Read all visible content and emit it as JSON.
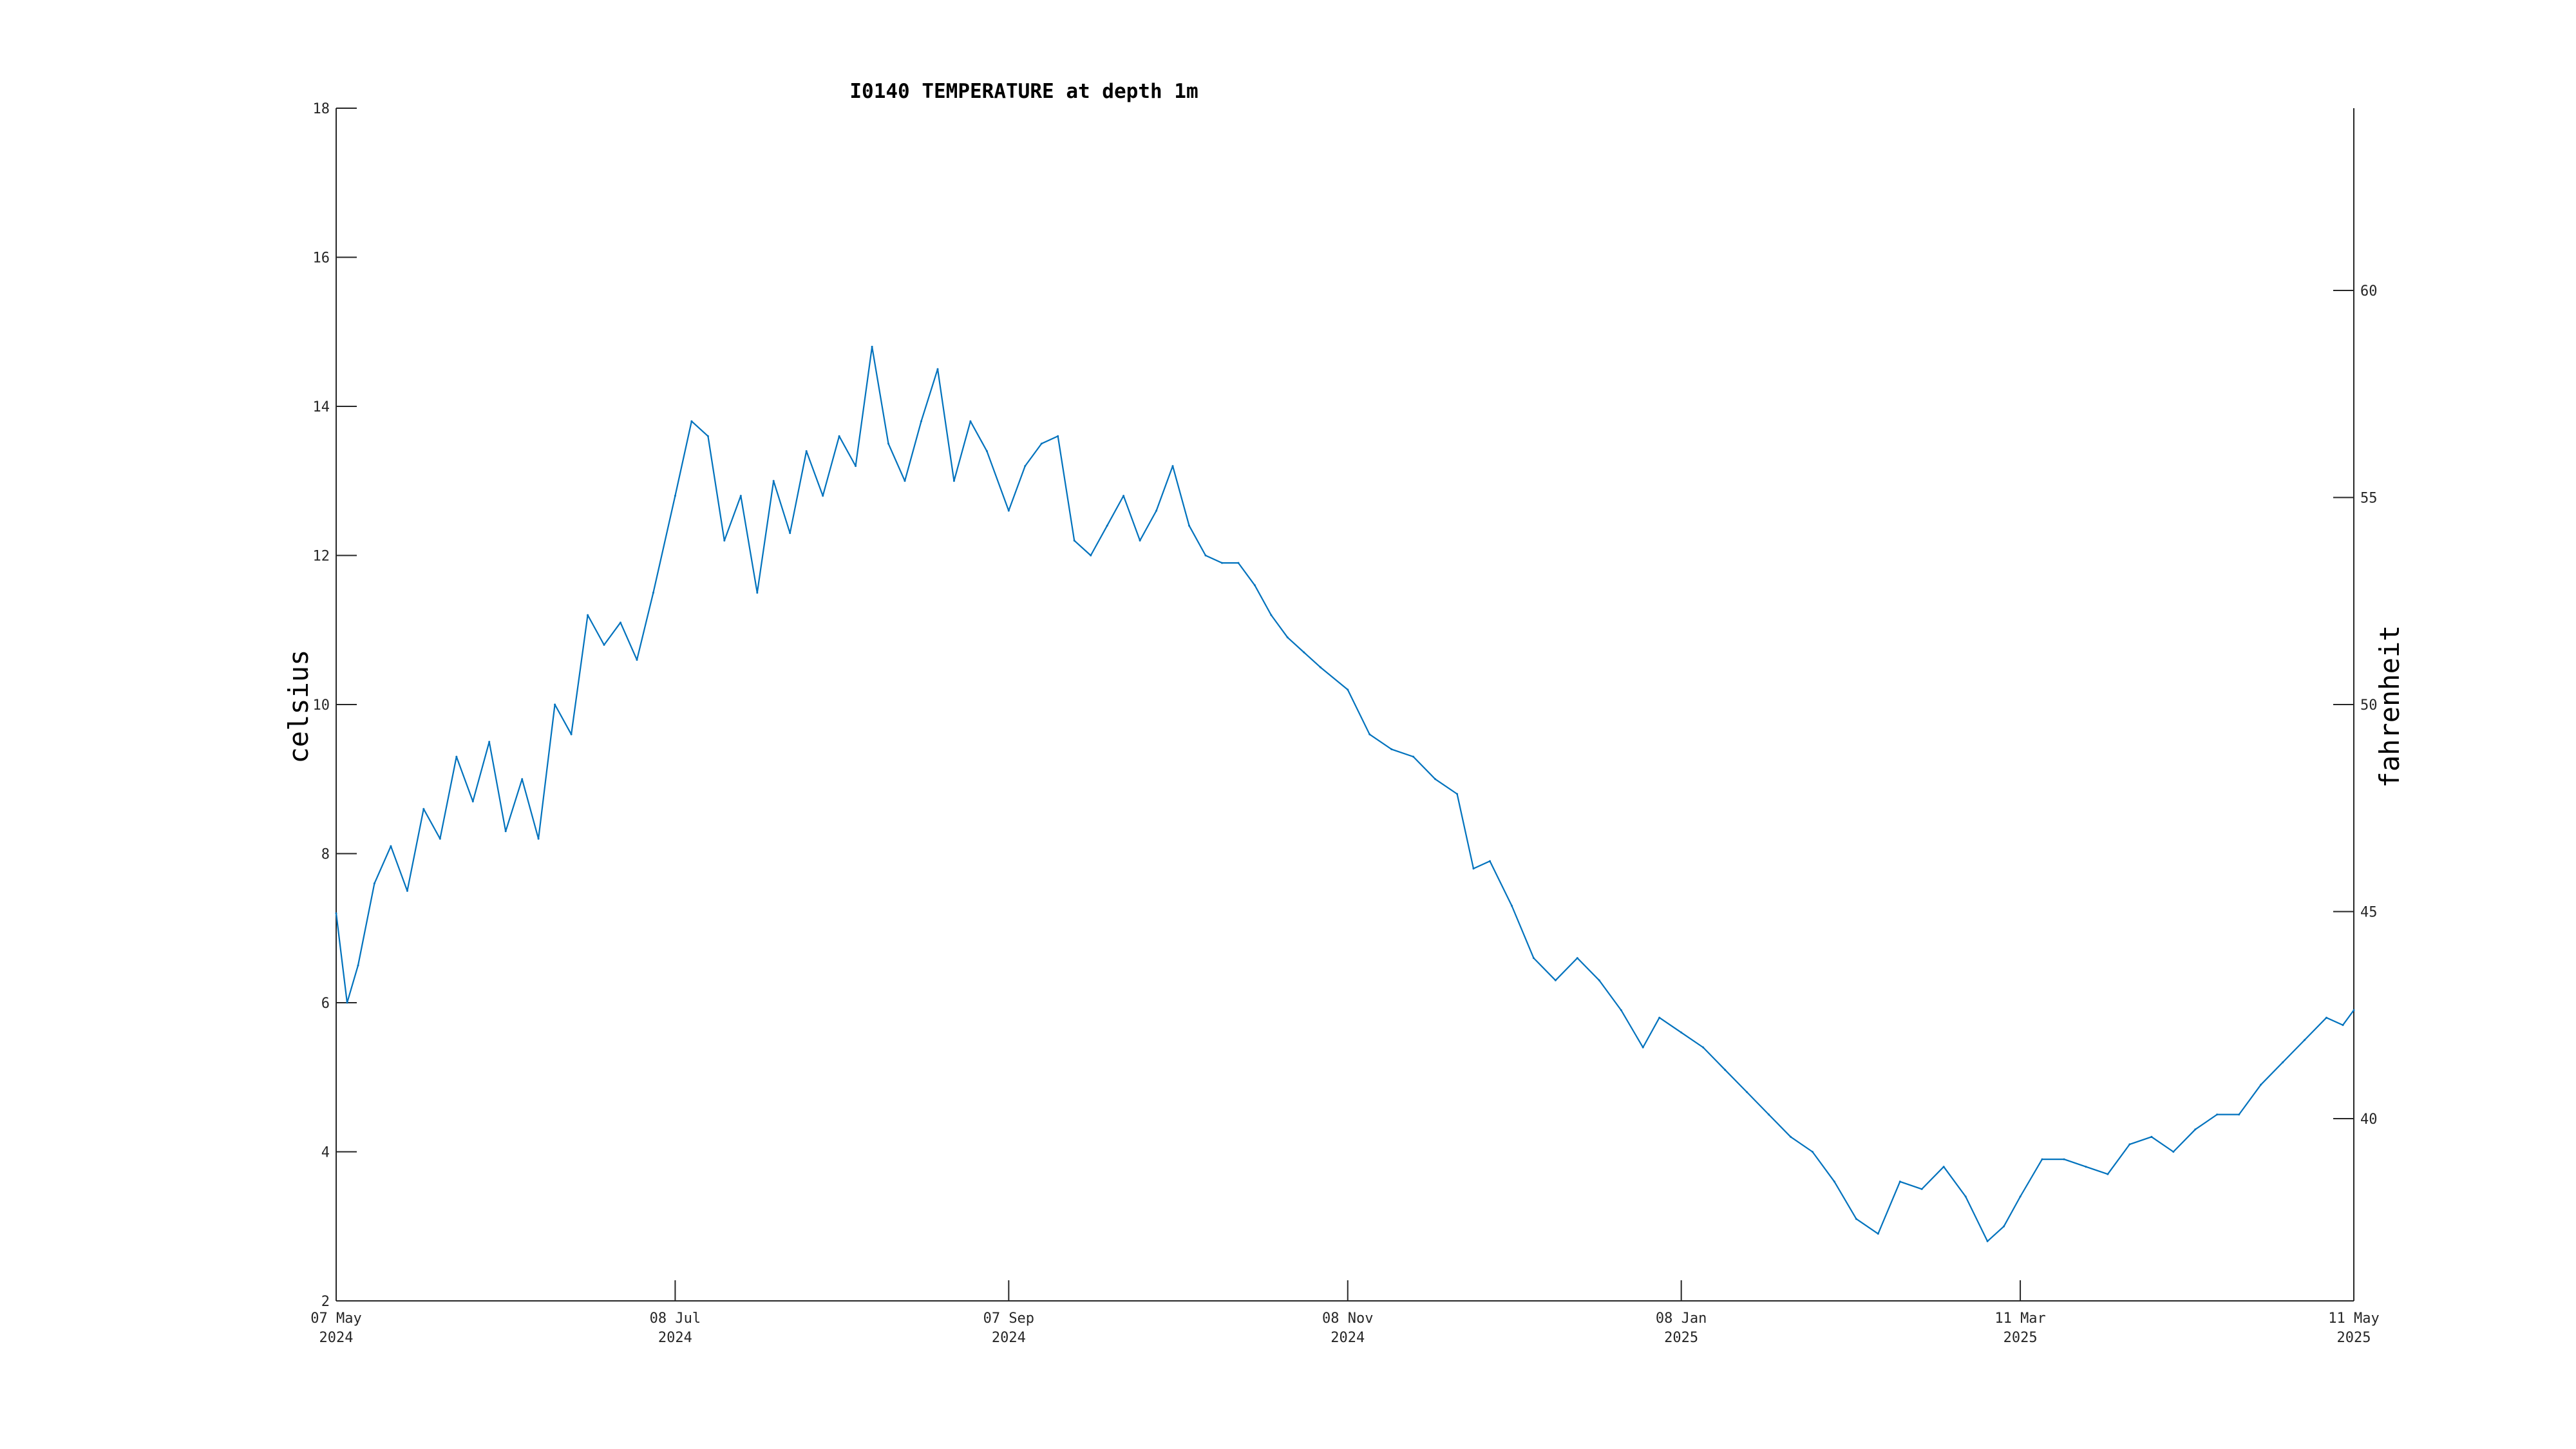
{
  "chart_data": {
    "type": "line",
    "title": "I0140 TEMPERATURE at depth 1m",
    "ylabel": "celsius",
    "ylabel_right": "fahrenheit",
    "xlabel": "",
    "ylim": [
      2,
      18
    ],
    "ylim_right": [
      35.6,
      64.4
    ],
    "yticks": [
      2,
      4,
      6,
      8,
      10,
      12,
      14,
      16,
      18
    ],
    "yticks_right": [
      40,
      45,
      50,
      55,
      60
    ],
    "xlim": [
      "2024-05-07",
      "2025-05-11"
    ],
    "xticks": [
      {
        "date": "2024-05-07",
        "line1": "07 May",
        "line2": "2024"
      },
      {
        "date": "2024-07-08",
        "line1": "08 Jul",
        "line2": "2024"
      },
      {
        "date": "2024-09-07",
        "line1": "07 Sep",
        "line2": "2024"
      },
      {
        "date": "2024-11-08",
        "line1": "08 Nov",
        "line2": "2024"
      },
      {
        "date": "2025-01-08",
        "line1": "08 Jan",
        "line2": "2025"
      },
      {
        "date": "2025-03-11",
        "line1": "11 Mar",
        "line2": "2025"
      },
      {
        "date": "2025-05-11",
        "line1": "11 May",
        "line2": "2025"
      }
    ],
    "grid": false,
    "color": "#0072bd",
    "series": [
      {
        "x": [
          "2024-05-07",
          "2024-05-09",
          "2024-05-11",
          "2024-05-14",
          "2024-05-17",
          "2024-05-20",
          "2024-05-23",
          "2024-05-26",
          "2024-05-29",
          "2024-06-01",
          "2024-06-04",
          "2024-06-07",
          "2024-06-10",
          "2024-06-13",
          "2024-06-16",
          "2024-06-19",
          "2024-06-22",
          "2024-06-25",
          "2024-06-28",
          "2024-07-01",
          "2024-07-04",
          "2024-07-08",
          "2024-07-11",
          "2024-07-14",
          "2024-07-17",
          "2024-07-20",
          "2024-07-23",
          "2024-07-26",
          "2024-07-29",
          "2024-08-01",
          "2024-08-04",
          "2024-08-07",
          "2024-08-10",
          "2024-08-13",
          "2024-08-16",
          "2024-08-19",
          "2024-08-22",
          "2024-08-25",
          "2024-08-28",
          "2024-08-31",
          "2024-09-03",
          "2024-09-07",
          "2024-09-10",
          "2024-09-13",
          "2024-09-16",
          "2024-09-19",
          "2024-09-22",
          "2024-09-25",
          "2024-09-28",
          "2024-10-01",
          "2024-10-04",
          "2024-10-07",
          "2024-10-10",
          "2024-10-13",
          "2024-10-16",
          "2024-10-19",
          "2024-10-22",
          "2024-10-25",
          "2024-10-28",
          "2024-10-31",
          "2024-11-03",
          "2024-11-08",
          "2024-11-12",
          "2024-11-16",
          "2024-11-20",
          "2024-11-24",
          "2024-11-28",
          "2024-12-01",
          "2024-12-04",
          "2024-12-08",
          "2024-12-12",
          "2024-12-16",
          "2024-12-20",
          "2024-12-24",
          "2024-12-28",
          "2025-01-01",
          "2025-01-04",
          "2025-01-08",
          "2025-01-12",
          "2025-01-16",
          "2025-01-20",
          "2025-01-24",
          "2025-01-28",
          "2025-02-01",
          "2025-02-05",
          "2025-02-09",
          "2025-02-13",
          "2025-02-17",
          "2025-02-21",
          "2025-02-25",
          "2025-03-01",
          "2025-03-05",
          "2025-03-08",
          "2025-03-11",
          "2025-03-15",
          "2025-03-19",
          "2025-03-23",
          "2025-03-27",
          "2025-03-31",
          "2025-04-04",
          "2025-04-08",
          "2025-04-12",
          "2025-04-16",
          "2025-04-20",
          "2025-04-24",
          "2025-04-28",
          "2025-05-02",
          "2025-05-06",
          "2025-05-09",
          "2025-05-11"
        ],
        "y": [
          7.2,
          6.0,
          6.5,
          7.6,
          8.1,
          7.5,
          8.6,
          8.2,
          9.3,
          8.7,
          9.5,
          8.3,
          9.0,
          8.2,
          10.0,
          9.6,
          11.2,
          10.8,
          11.1,
          10.6,
          11.5,
          12.8,
          13.8,
          13.6,
          12.2,
          12.8,
          11.5,
          13.0,
          12.3,
          13.4,
          12.8,
          13.6,
          13.2,
          14.8,
          13.5,
          13.0,
          13.8,
          14.5,
          13.0,
          13.8,
          13.4,
          12.6,
          13.2,
          13.5,
          13.6,
          12.2,
          12.0,
          12.4,
          12.8,
          12.2,
          12.6,
          13.2,
          12.4,
          12.0,
          11.9,
          11.9,
          11.6,
          11.2,
          10.9,
          10.7,
          10.5,
          10.2,
          9.6,
          9.4,
          9.3,
          9.0,
          8.8,
          7.8,
          7.9,
          7.3,
          6.6,
          6.3,
          6.6,
          6.3,
          5.9,
          5.4,
          5.8,
          5.6,
          5.4,
          5.1,
          4.8,
          4.5,
          4.2,
          4.0,
          3.6,
          3.1,
          2.9,
          3.6,
          3.5,
          3.8,
          3.4,
          2.8,
          3.0,
          3.4,
          3.9,
          3.9,
          3.8,
          3.7,
          4.1,
          4.2,
          4.0,
          4.3,
          4.5,
          4.5,
          4.9,
          5.2,
          5.5,
          5.8,
          5.7,
          5.9
        ]
      }
    ]
  }
}
